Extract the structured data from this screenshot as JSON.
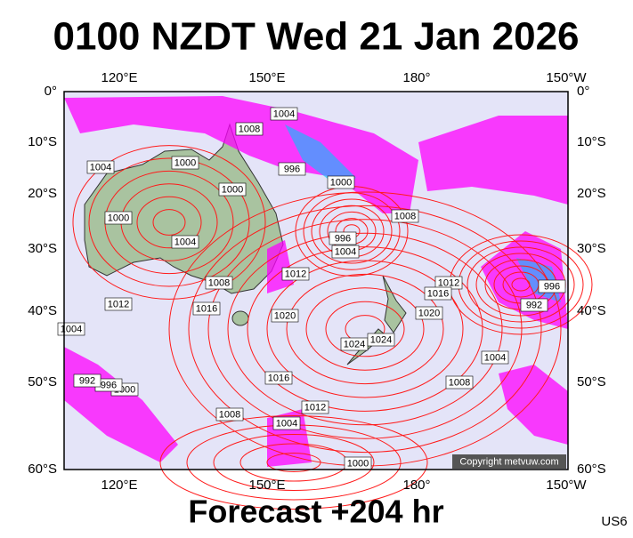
{
  "title": "0100 NZDT Wed 21 Jan 2026",
  "subtitle": "Forecast +204 hr",
  "code": "US6",
  "copyright": "Copyright metvuw.com",
  "lon_labels": [
    "120°E",
    "150°E",
    "180°",
    "150°W"
  ],
  "lat_labels": [
    "0°",
    "10°S",
    "20°S",
    "30°S",
    "40°S",
    "50°S",
    "60°S"
  ],
  "isobar_labels": [
    1004,
    1008,
    996,
    1000,
    1004,
    1000,
    1000,
    1000,
    1004,
    1008,
    1012,
    996,
    1004,
    1008,
    1012,
    1016,
    1020,
    1024,
    1024,
    1012,
    1016,
    1020,
    996,
    992,
    1004,
    1008,
    1016,
    1012,
    1008,
    1004,
    1000,
    1000,
    996,
    992,
    1004
  ]
}
